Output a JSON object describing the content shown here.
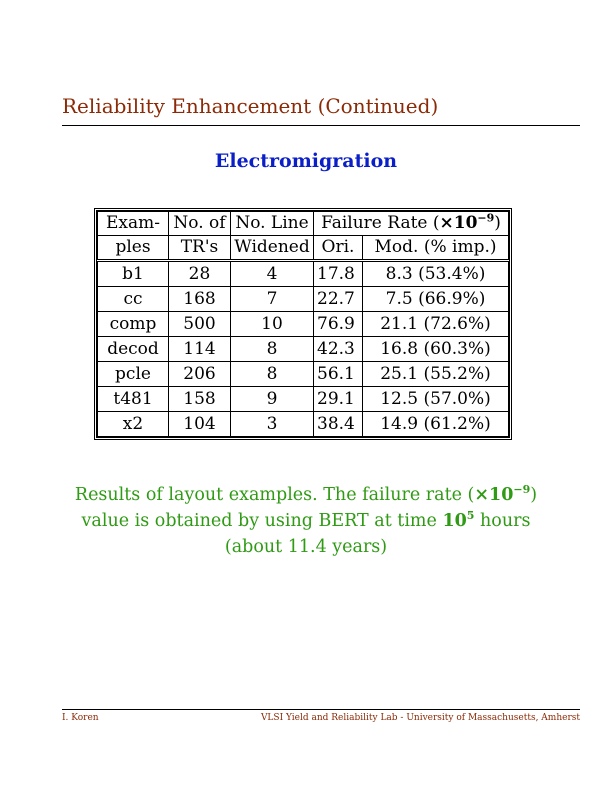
{
  "header": {
    "title": "Reliability Enhancement (Continued)"
  },
  "section": {
    "heading": "Electromigration"
  },
  "table": {
    "headers": {
      "examples_l1": "Exam-",
      "examples_l2": "ples",
      "trs_l1": "No. of",
      "trs_l2": "TR's",
      "widened_l1": "No. Line",
      "widened_l2": "Widened",
      "failure_rate_prefix": "Failure Rate (",
      "failure_rate_times": "×10",
      "failure_rate_exp": "−9",
      "failure_rate_suffix": ")",
      "ori": "Ori.",
      "mod": "Mod. (% imp.)"
    },
    "rows": [
      {
        "example": "b1",
        "trs": "28",
        "widened": "4",
        "ori": "17.8",
        "mod": "8.3 (53.4%)"
      },
      {
        "example": "cc",
        "trs": "168",
        "widened": "7",
        "ori": "22.7",
        "mod": "7.5 (66.9%)"
      },
      {
        "example": "comp",
        "trs": "500",
        "widened": "10",
        "ori": "76.9",
        "mod": "21.1 (72.6%)"
      },
      {
        "example": "decod",
        "trs": "114",
        "widened": "8",
        "ori": "42.3",
        "mod": "16.8 (60.3%)"
      },
      {
        "example": "pcle",
        "trs": "206",
        "widened": "8",
        "ori": "56.1",
        "mod": "25.1 (55.2%)"
      },
      {
        "example": "t481",
        "trs": "158",
        "widened": "9",
        "ori": "29.1",
        "mod": "12.5 (57.0%)"
      },
      {
        "example": "x2",
        "trs": "104",
        "widened": "3",
        "ori": "38.4",
        "mod": "14.9 (61.2%)"
      }
    ]
  },
  "caption": {
    "line1_text": "Results of layout examples. The failure rate (",
    "line1_times": "×10",
    "line1_exp": "−9",
    "line1_close": ")",
    "line2_text": "value is obtained by using BERT at time ",
    "line2_base": "10",
    "line2_exp": "5",
    "line2_tail": " hours",
    "line3_text": "(about 11.4 years)"
  },
  "footer": {
    "left": "I. Koren",
    "right": "VLSI Yield and Reliability Lab - University of Massachusetts, Amherst"
  },
  "colors": {
    "title": "#8b2a06",
    "heading": "#0b1fc8",
    "caption": "#2f9a14"
  }
}
